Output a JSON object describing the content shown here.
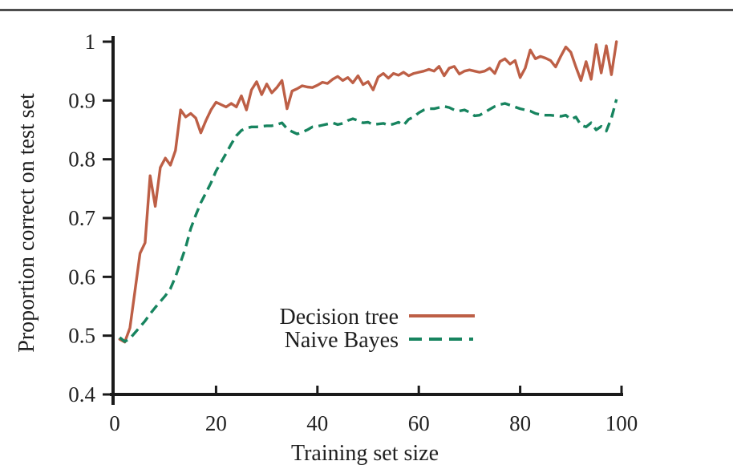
{
  "page": {
    "background": "#ffffff",
    "top_rule_color": "#4d4d4d",
    "axis_color": "#1a1a1a",
    "text_color": "#1f1f1f"
  },
  "chart_data": {
    "type": "line",
    "title": "",
    "xlabel": "Training set size",
    "ylabel": "Proportion correct on test set",
    "xlim": [
      0,
      100
    ],
    "ylim": [
      0.4,
      1.0
    ],
    "x_ticks": [
      0,
      20,
      40,
      60,
      80,
      100
    ],
    "x_tick_labels": [
      "0",
      "20",
      "40",
      "60",
      "80",
      "100"
    ],
    "y_ticks": [
      0.4,
      0.5,
      0.6,
      0.7,
      0.8,
      0.9,
      1.0
    ],
    "y_tick_labels": [
      "0.4",
      "0.5",
      "0.6",
      "0.7",
      "0.8",
      "0.9",
      "1"
    ],
    "grid": false,
    "legend_position": "inside-lower-center",
    "x": [
      1,
      2,
      3,
      4,
      5,
      6,
      7,
      8,
      9,
      10,
      11,
      12,
      13,
      14,
      15,
      16,
      17,
      18,
      19,
      20,
      21,
      22,
      23,
      24,
      25,
      26,
      27,
      28,
      29,
      30,
      31,
      32,
      33,
      34,
      35,
      36,
      37,
      38,
      39,
      40,
      41,
      42,
      43,
      44,
      45,
      46,
      47,
      48,
      49,
      50,
      51,
      52,
      53,
      54,
      55,
      56,
      57,
      58,
      59,
      60,
      61,
      62,
      63,
      64,
      65,
      66,
      67,
      68,
      69,
      70,
      71,
      72,
      73,
      74,
      75,
      76,
      77,
      78,
      79,
      80,
      81,
      82,
      83,
      84,
      85,
      86,
      87,
      88,
      89,
      90,
      91,
      92,
      93,
      94,
      95,
      96,
      97,
      98,
      99
    ],
    "series": [
      {
        "name": "Decision tree",
        "color": "#bd5f46",
        "style": "solid",
        "values": [
          0.494,
          0.489,
          0.513,
          0.576,
          0.64,
          0.658,
          0.772,
          0.72,
          0.786,
          0.802,
          0.79,
          0.815,
          0.884,
          0.872,
          0.878,
          0.87,
          0.845,
          0.866,
          0.884,
          0.897,
          0.893,
          0.889,
          0.895,
          0.889,
          0.908,
          0.884,
          0.918,
          0.932,
          0.91,
          0.928,
          0.913,
          0.922,
          0.934,
          0.886,
          0.916,
          0.92,
          0.925,
          0.923,
          0.922,
          0.926,
          0.931,
          0.929,
          0.936,
          0.941,
          0.934,
          0.939,
          0.93,
          0.942,
          0.927,
          0.932,
          0.918,
          0.94,
          0.946,
          0.938,
          0.946,
          0.943,
          0.948,
          0.942,
          0.946,
          0.948,
          0.95,
          0.953,
          0.95,
          0.958,
          0.942,
          0.955,
          0.958,
          0.945,
          0.95,
          0.952,
          0.95,
          0.948,
          0.95,
          0.955,
          0.946,
          0.966,
          0.971,
          0.962,
          0.968,
          0.939,
          0.955,
          0.986,
          0.971,
          0.975,
          0.972,
          0.968,
          0.957,
          0.975,
          0.991,
          0.982,
          0.957,
          0.934,
          0.966,
          0.936,
          0.995,
          0.947,
          0.993,
          0.944,
          1.0
        ]
      },
      {
        "name": "Naive Bayes",
        "color": "#17845f",
        "style": "dashed",
        "values": [
          0.497,
          0.49,
          0.495,
          0.505,
          0.515,
          0.525,
          0.537,
          0.548,
          0.558,
          0.568,
          0.58,
          0.6,
          0.625,
          0.65,
          0.682,
          0.705,
          0.726,
          0.743,
          0.76,
          0.78,
          0.795,
          0.81,
          0.826,
          0.84,
          0.849,
          0.853,
          0.855,
          0.855,
          0.856,
          0.857,
          0.857,
          0.859,
          0.862,
          0.852,
          0.847,
          0.843,
          0.846,
          0.85,
          0.855,
          0.856,
          0.858,
          0.86,
          0.862,
          0.859,
          0.861,
          0.866,
          0.869,
          0.866,
          0.862,
          0.863,
          0.859,
          0.86,
          0.861,
          0.858,
          0.86,
          0.863,
          0.858,
          0.868,
          0.872,
          0.879,
          0.884,
          0.886,
          0.886,
          0.888,
          0.89,
          0.888,
          0.884,
          0.882,
          0.884,
          0.88,
          0.874,
          0.875,
          0.88,
          0.885,
          0.89,
          0.893,
          0.895,
          0.892,
          0.889,
          0.886,
          0.884,
          0.882,
          0.878,
          0.876,
          0.875,
          0.875,
          0.874,
          0.873,
          0.875,
          0.868,
          0.872,
          0.858,
          0.855,
          0.862,
          0.85,
          0.856,
          0.848,
          0.87,
          0.902
        ]
      }
    ]
  }
}
